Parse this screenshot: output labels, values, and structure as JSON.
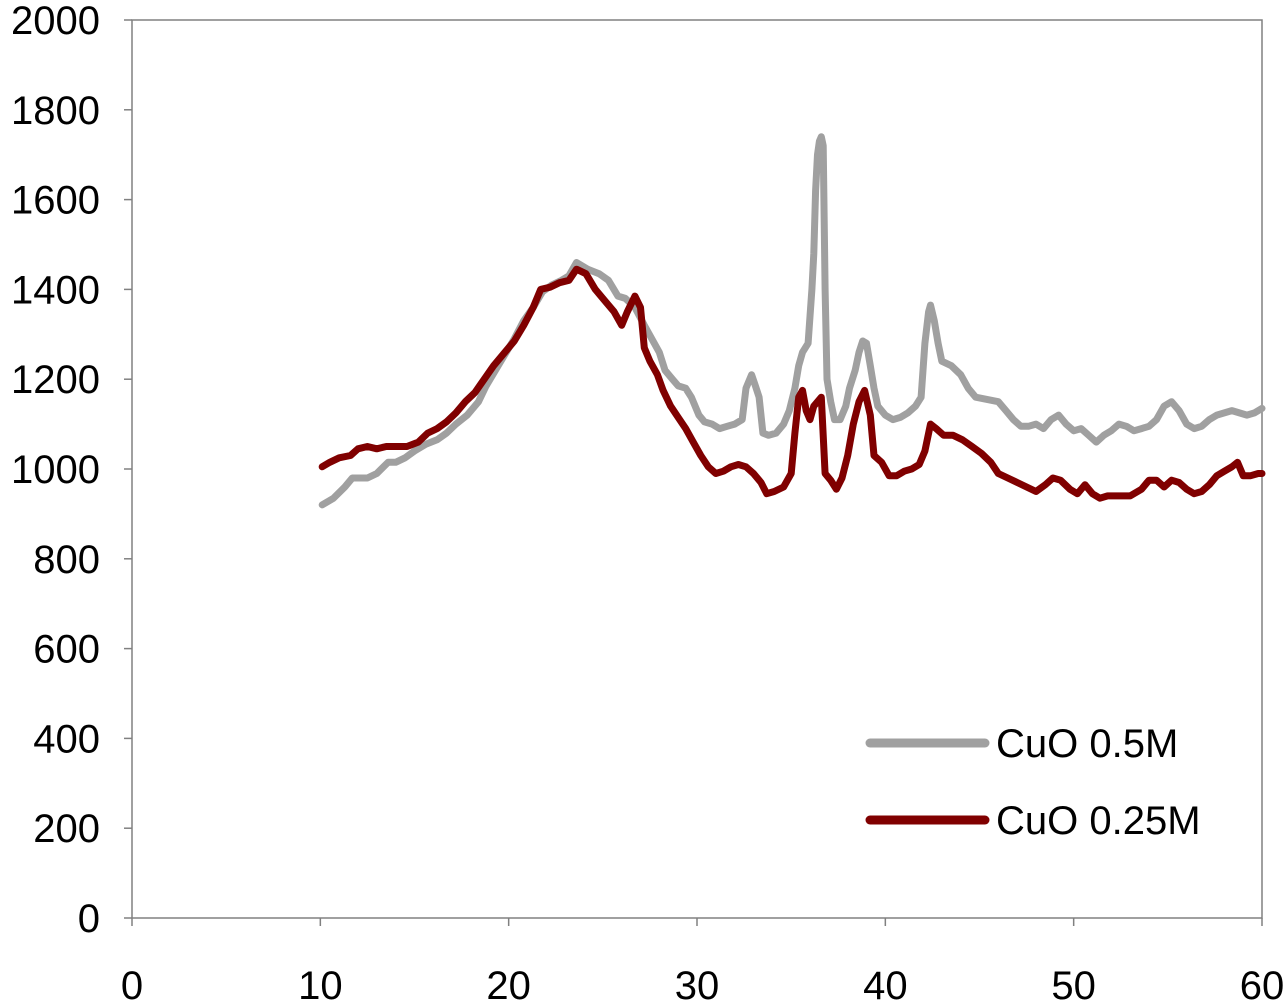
{
  "chart_data": {
    "type": "line",
    "title": "",
    "xlabel": "",
    "ylabel": "",
    "xlim": [
      0,
      60
    ],
    "ylim": [
      0,
      2000
    ],
    "x_ticks": [
      0,
      10,
      20,
      30,
      40,
      50,
      60
    ],
    "y_ticks": [
      0,
      200,
      400,
      600,
      800,
      1000,
      1200,
      1400,
      1600,
      1800,
      2000
    ],
    "grid": false,
    "legend_position": "bottom-right",
    "series": [
      {
        "name": "CuO 0.5M",
        "color": "#a0a0a0",
        "points": [
          [
            10.1,
            920
          ],
          [
            10.7,
            935
          ],
          [
            11.3,
            960
          ],
          [
            11.7,
            980
          ],
          [
            12.5,
            980
          ],
          [
            13.0,
            990
          ],
          [
            13.6,
            1015
          ],
          [
            14.0,
            1015
          ],
          [
            14.5,
            1025
          ],
          [
            15.0,
            1040
          ],
          [
            15.6,
            1055
          ],
          [
            16.2,
            1065
          ],
          [
            16.7,
            1080
          ],
          [
            17.2,
            1100
          ],
          [
            17.8,
            1120
          ],
          [
            18.4,
            1150
          ],
          [
            18.8,
            1185
          ],
          [
            19.3,
            1220
          ],
          [
            19.8,
            1255
          ],
          [
            20.3,
            1290
          ],
          [
            20.8,
            1330
          ],
          [
            21.3,
            1360
          ],
          [
            21.8,
            1395
          ],
          [
            22.3,
            1410
          ],
          [
            22.8,
            1420
          ],
          [
            23.2,
            1430
          ],
          [
            23.6,
            1460
          ],
          [
            24.2,
            1445
          ],
          [
            24.8,
            1435
          ],
          [
            25.3,
            1420
          ],
          [
            25.8,
            1385
          ],
          [
            26.2,
            1380
          ],
          [
            26.7,
            1360
          ],
          [
            27.2,
            1320
          ],
          [
            27.6,
            1290
          ],
          [
            28.0,
            1260
          ],
          [
            28.3,
            1220
          ],
          [
            28.7,
            1200
          ],
          [
            29.0,
            1185
          ],
          [
            29.4,
            1180
          ],
          [
            29.7,
            1160
          ],
          [
            30.1,
            1120
          ],
          [
            30.4,
            1105
          ],
          [
            30.8,
            1100
          ],
          [
            31.2,
            1090
          ],
          [
            31.6,
            1095
          ],
          [
            32.0,
            1100
          ],
          [
            32.4,
            1110
          ],
          [
            32.6,
            1180
          ],
          [
            32.9,
            1210
          ],
          [
            33.1,
            1185
          ],
          [
            33.3,
            1160
          ],
          [
            33.5,
            1080
          ],
          [
            33.8,
            1075
          ],
          [
            34.2,
            1080
          ],
          [
            34.6,
            1100
          ],
          [
            34.9,
            1130
          ],
          [
            35.2,
            1180
          ],
          [
            35.4,
            1230
          ],
          [
            35.6,
            1260
          ],
          [
            35.9,
            1280
          ],
          [
            36.1,
            1400
          ],
          [
            36.2,
            1480
          ],
          [
            36.3,
            1620
          ],
          [
            36.4,
            1700
          ],
          [
            36.5,
            1730
          ],
          [
            36.6,
            1740
          ],
          [
            36.7,
            1720
          ],
          [
            36.8,
            1400
          ],
          [
            36.9,
            1200
          ],
          [
            37.1,
            1150
          ],
          [
            37.3,
            1110
          ],
          [
            37.6,
            1110
          ],
          [
            37.9,
            1140
          ],
          [
            38.1,
            1180
          ],
          [
            38.4,
            1220
          ],
          [
            38.6,
            1260
          ],
          [
            38.8,
            1285
          ],
          [
            39.0,
            1280
          ],
          [
            39.2,
            1230
          ],
          [
            39.4,
            1180
          ],
          [
            39.6,
            1140
          ],
          [
            40.0,
            1120
          ],
          [
            40.4,
            1110
          ],
          [
            40.8,
            1115
          ],
          [
            41.2,
            1125
          ],
          [
            41.6,
            1140
          ],
          [
            41.9,
            1160
          ],
          [
            42.1,
            1280
          ],
          [
            42.3,
            1350
          ],
          [
            42.4,
            1365
          ],
          [
            42.6,
            1330
          ],
          [
            42.8,
            1280
          ],
          [
            43.0,
            1240
          ],
          [
            43.5,
            1230
          ],
          [
            44.0,
            1210
          ],
          [
            44.4,
            1180
          ],
          [
            44.8,
            1160
          ],
          [
            45.4,
            1155
          ],
          [
            46.0,
            1150
          ],
          [
            46.4,
            1130
          ],
          [
            46.8,
            1110
          ],
          [
            47.2,
            1095
          ],
          [
            47.6,
            1095
          ],
          [
            48.0,
            1100
          ],
          [
            48.4,
            1090
          ],
          [
            48.8,
            1110
          ],
          [
            49.2,
            1120
          ],
          [
            49.6,
            1100
          ],
          [
            50.0,
            1085
          ],
          [
            50.4,
            1090
          ],
          [
            50.8,
            1075
          ],
          [
            51.2,
            1060
          ],
          [
            51.6,
            1075
          ],
          [
            52.0,
            1085
          ],
          [
            52.4,
            1100
          ],
          [
            52.8,
            1095
          ],
          [
            53.2,
            1085
          ],
          [
            53.6,
            1090
          ],
          [
            54.0,
            1095
          ],
          [
            54.4,
            1110
          ],
          [
            54.8,
            1140
          ],
          [
            55.2,
            1150
          ],
          [
            55.6,
            1130
          ],
          [
            56.0,
            1100
          ],
          [
            56.4,
            1090
          ],
          [
            56.8,
            1095
          ],
          [
            57.2,
            1110
          ],
          [
            57.6,
            1120
          ],
          [
            58.0,
            1125
          ],
          [
            58.4,
            1130
          ],
          [
            58.8,
            1125
          ],
          [
            59.2,
            1120
          ],
          [
            59.6,
            1125
          ],
          [
            60.0,
            1135
          ]
        ]
      },
      {
        "name": "CuO 0.25M",
        "color": "#800000",
        "points": [
          [
            10.1,
            1005
          ],
          [
            10.5,
            1015
          ],
          [
            11.0,
            1025
          ],
          [
            11.6,
            1030
          ],
          [
            12.0,
            1045
          ],
          [
            12.5,
            1050
          ],
          [
            13.0,
            1045
          ],
          [
            13.5,
            1050
          ],
          [
            14.0,
            1050
          ],
          [
            14.6,
            1050
          ],
          [
            15.2,
            1060
          ],
          [
            15.7,
            1080
          ],
          [
            16.2,
            1090
          ],
          [
            16.7,
            1105
          ],
          [
            17.2,
            1125
          ],
          [
            17.7,
            1150
          ],
          [
            18.2,
            1170
          ],
          [
            18.7,
            1200
          ],
          [
            19.2,
            1230
          ],
          [
            19.7,
            1255
          ],
          [
            20.3,
            1285
          ],
          [
            20.8,
            1320
          ],
          [
            21.3,
            1360
          ],
          [
            21.7,
            1400
          ],
          [
            22.2,
            1405
          ],
          [
            22.7,
            1415
          ],
          [
            23.2,
            1420
          ],
          [
            23.6,
            1445
          ],
          [
            24.1,
            1435
          ],
          [
            24.6,
            1400
          ],
          [
            25.1,
            1375
          ],
          [
            25.6,
            1350
          ],
          [
            26.0,
            1320
          ],
          [
            26.3,
            1350
          ],
          [
            26.7,
            1385
          ],
          [
            27.0,
            1360
          ],
          [
            27.2,
            1270
          ],
          [
            27.5,
            1240
          ],
          [
            27.9,
            1210
          ],
          [
            28.2,
            1175
          ],
          [
            28.6,
            1140
          ],
          [
            29.0,
            1115
          ],
          [
            29.4,
            1090
          ],
          [
            29.8,
            1060
          ],
          [
            30.2,
            1030
          ],
          [
            30.6,
            1005
          ],
          [
            31.0,
            990
          ],
          [
            31.4,
            995
          ],
          [
            31.8,
            1005
          ],
          [
            32.2,
            1010
          ],
          [
            32.6,
            1005
          ],
          [
            33.0,
            990
          ],
          [
            33.4,
            970
          ],
          [
            33.7,
            945
          ],
          [
            34.1,
            950
          ],
          [
            34.6,
            960
          ],
          [
            35.0,
            990
          ],
          [
            35.2,
            1080
          ],
          [
            35.4,
            1160
          ],
          [
            35.6,
            1175
          ],
          [
            35.8,
            1130
          ],
          [
            36.0,
            1110
          ],
          [
            36.2,
            1140
          ],
          [
            36.4,
            1150
          ],
          [
            36.6,
            1160
          ],
          [
            36.8,
            990
          ],
          [
            37.1,
            975
          ],
          [
            37.4,
            955
          ],
          [
            37.7,
            980
          ],
          [
            38.0,
            1030
          ],
          [
            38.3,
            1100
          ],
          [
            38.6,
            1150
          ],
          [
            38.9,
            1175
          ],
          [
            39.2,
            1120
          ],
          [
            39.4,
            1030
          ],
          [
            39.8,
            1015
          ],
          [
            40.2,
            985
          ],
          [
            40.6,
            985
          ],
          [
            41.0,
            995
          ],
          [
            41.4,
            1000
          ],
          [
            41.8,
            1010
          ],
          [
            42.1,
            1040
          ],
          [
            42.4,
            1100
          ],
          [
            42.7,
            1090
          ],
          [
            43.1,
            1075
          ],
          [
            43.6,
            1075
          ],
          [
            44.1,
            1065
          ],
          [
            44.6,
            1050
          ],
          [
            45.1,
            1035
          ],
          [
            45.6,
            1015
          ],
          [
            46.0,
            990
          ],
          [
            46.5,
            980
          ],
          [
            47.0,
            970
          ],
          [
            47.5,
            960
          ],
          [
            48.0,
            950
          ],
          [
            48.5,
            965
          ],
          [
            48.9,
            980
          ],
          [
            49.3,
            975
          ],
          [
            49.8,
            955
          ],
          [
            50.2,
            945
          ],
          [
            50.6,
            965
          ],
          [
            51.0,
            945
          ],
          [
            51.4,
            935
          ],
          [
            51.8,
            940
          ],
          [
            52.4,
            940
          ],
          [
            53.0,
            940
          ],
          [
            53.6,
            955
          ],
          [
            54.0,
            975
          ],
          [
            54.4,
            975
          ],
          [
            54.8,
            960
          ],
          [
            55.2,
            975
          ],
          [
            55.6,
            970
          ],
          [
            56.0,
            955
          ],
          [
            56.4,
            945
          ],
          [
            56.8,
            950
          ],
          [
            57.2,
            965
          ],
          [
            57.6,
            985
          ],
          [
            58.0,
            995
          ],
          [
            58.4,
            1005
          ],
          [
            58.7,
            1015
          ],
          [
            59.0,
            985
          ],
          [
            59.4,
            985
          ],
          [
            59.8,
            990
          ],
          [
            60.0,
            990
          ]
        ]
      }
    ]
  }
}
